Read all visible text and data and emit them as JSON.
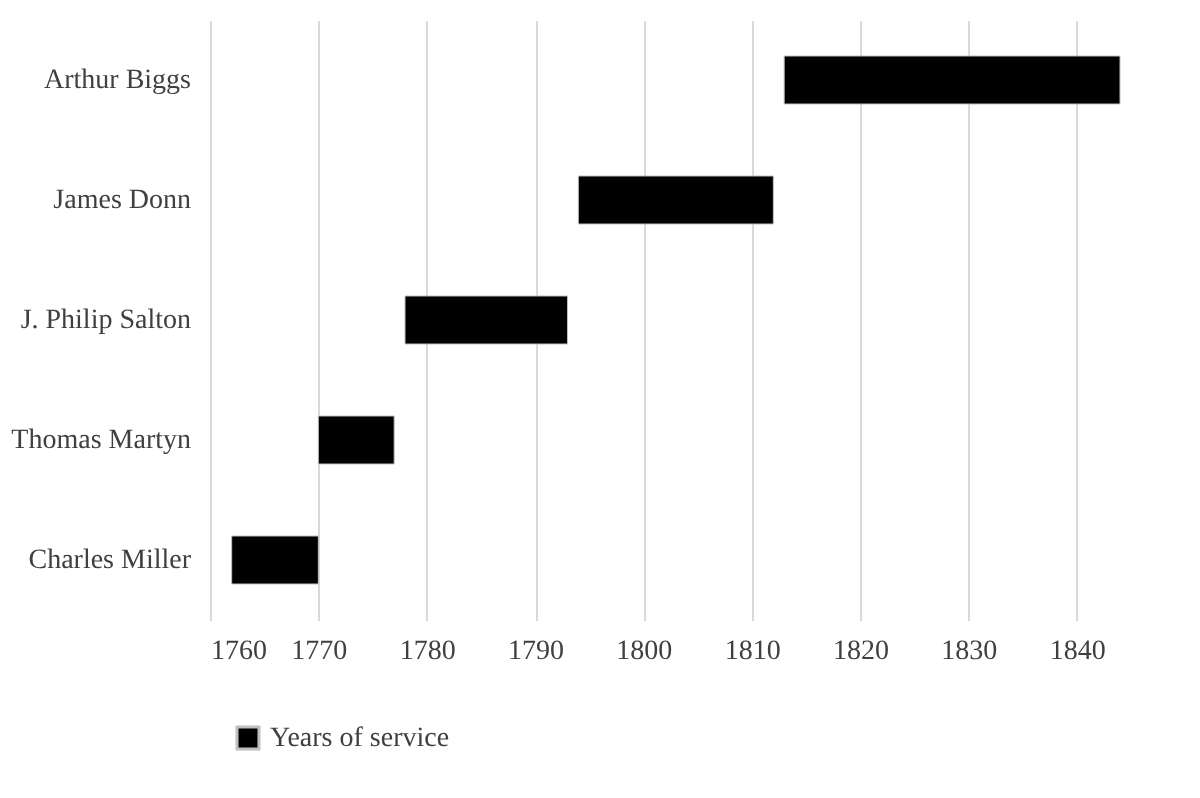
{
  "chart_data": {
    "type": "bar",
    "orientation": "horizontal",
    "categories": [
      "Arthur Biggs",
      "James Donn",
      "J. Philip Salton",
      "Thomas Martyn",
      "Charles Miller"
    ],
    "series": [
      {
        "name": "Years of service",
        "color": "#000000",
        "base": [
          1813,
          1794,
          1778,
          1770,
          1762
        ],
        "values": [
          31,
          18,
          15,
          7,
          8
        ]
      }
    ],
    "xlim": [
      1760,
      1844
    ],
    "xticks": [
      1760,
      1770,
      1780,
      1790,
      1800,
      1810,
      1820,
      1830,
      1840
    ],
    "grid": "x",
    "legend": "bottom"
  }
}
